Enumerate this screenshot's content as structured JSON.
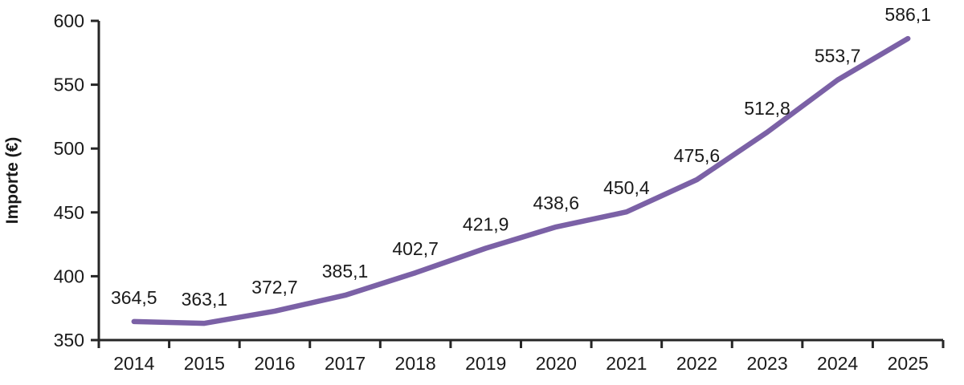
{
  "chart_data": {
    "type": "line",
    "title": "",
    "ylabel": "Importe (€)",
    "xlabel": "",
    "categories": [
      "2014",
      "2015",
      "2016",
      "2017",
      "2018",
      "2019",
      "2020",
      "2021",
      "2022",
      "2023",
      "2024",
      "2025"
    ],
    "series": [
      {
        "name": "Importe",
        "values": [
          364.5,
          363.1,
          372.7,
          385.1,
          402.7,
          421.9,
          438.6,
          450.4,
          475.6,
          512.8,
          553.7,
          586.1
        ],
        "point_labels": [
          "364,5",
          "363,1",
          "372,7",
          "385,1",
          "402,7",
          "421,9",
          "438,6",
          "450,4",
          "475,6",
          "512,8",
          "553,7",
          "586,1"
        ],
        "color": "#7B61A6"
      }
    ],
    "ylim": [
      350,
      600
    ],
    "ytick_step": 50,
    "ytick_labels": [
      "350",
      "400",
      "450",
      "500",
      "550",
      "600"
    ],
    "grid": false,
    "legend_position": "none",
    "axis_color": "#262626",
    "text_color": "#1A1A1A"
  }
}
